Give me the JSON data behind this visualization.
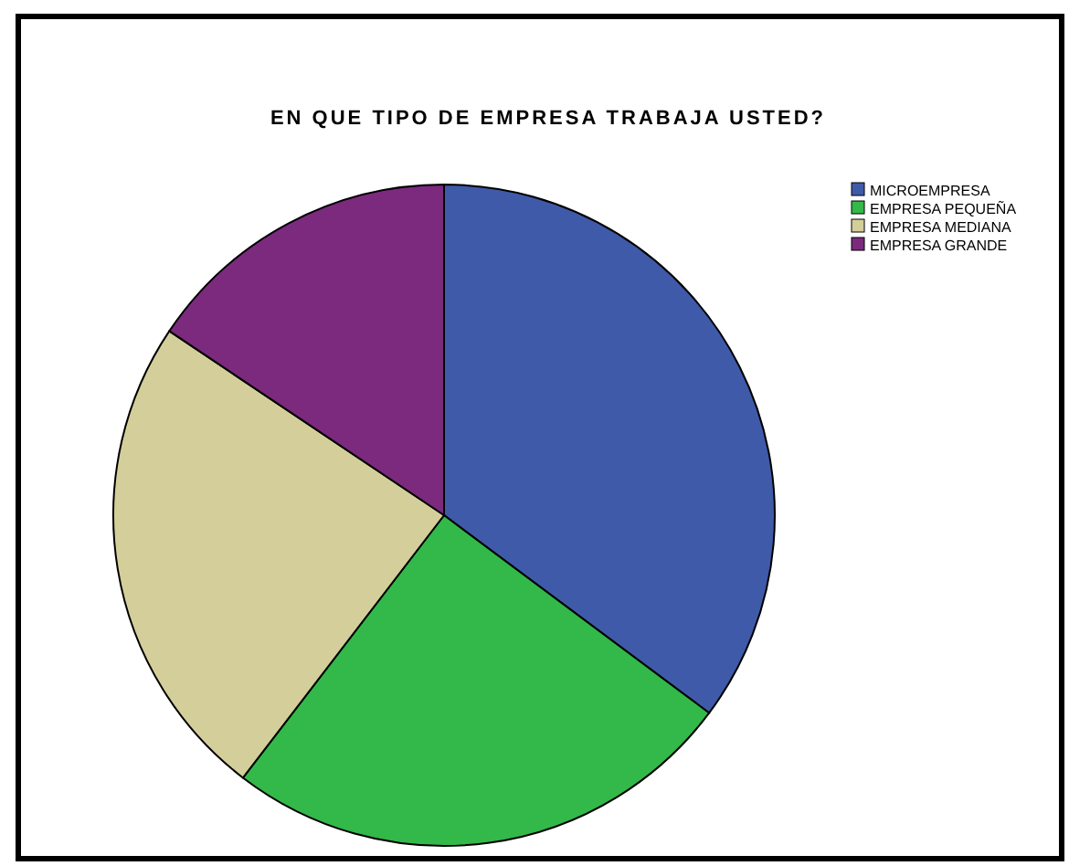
{
  "chart_data": {
    "type": "pie",
    "title": "EN QUE TIPO DE EMPRESA TRABAJA USTED?",
    "categories": [
      "MICROEMPRESA",
      "EMPRESA PEQUEÑA",
      "EMPRESA MEDIANA",
      "EMPRESA GRANDE"
    ],
    "values": [
      35.2,
      25.2,
      24.0,
      15.6
    ],
    "colors": [
      "#3f5aa8",
      "#33b84a",
      "#d4cf9a",
      "#7b2a7e"
    ],
    "legend": "top right"
  }
}
